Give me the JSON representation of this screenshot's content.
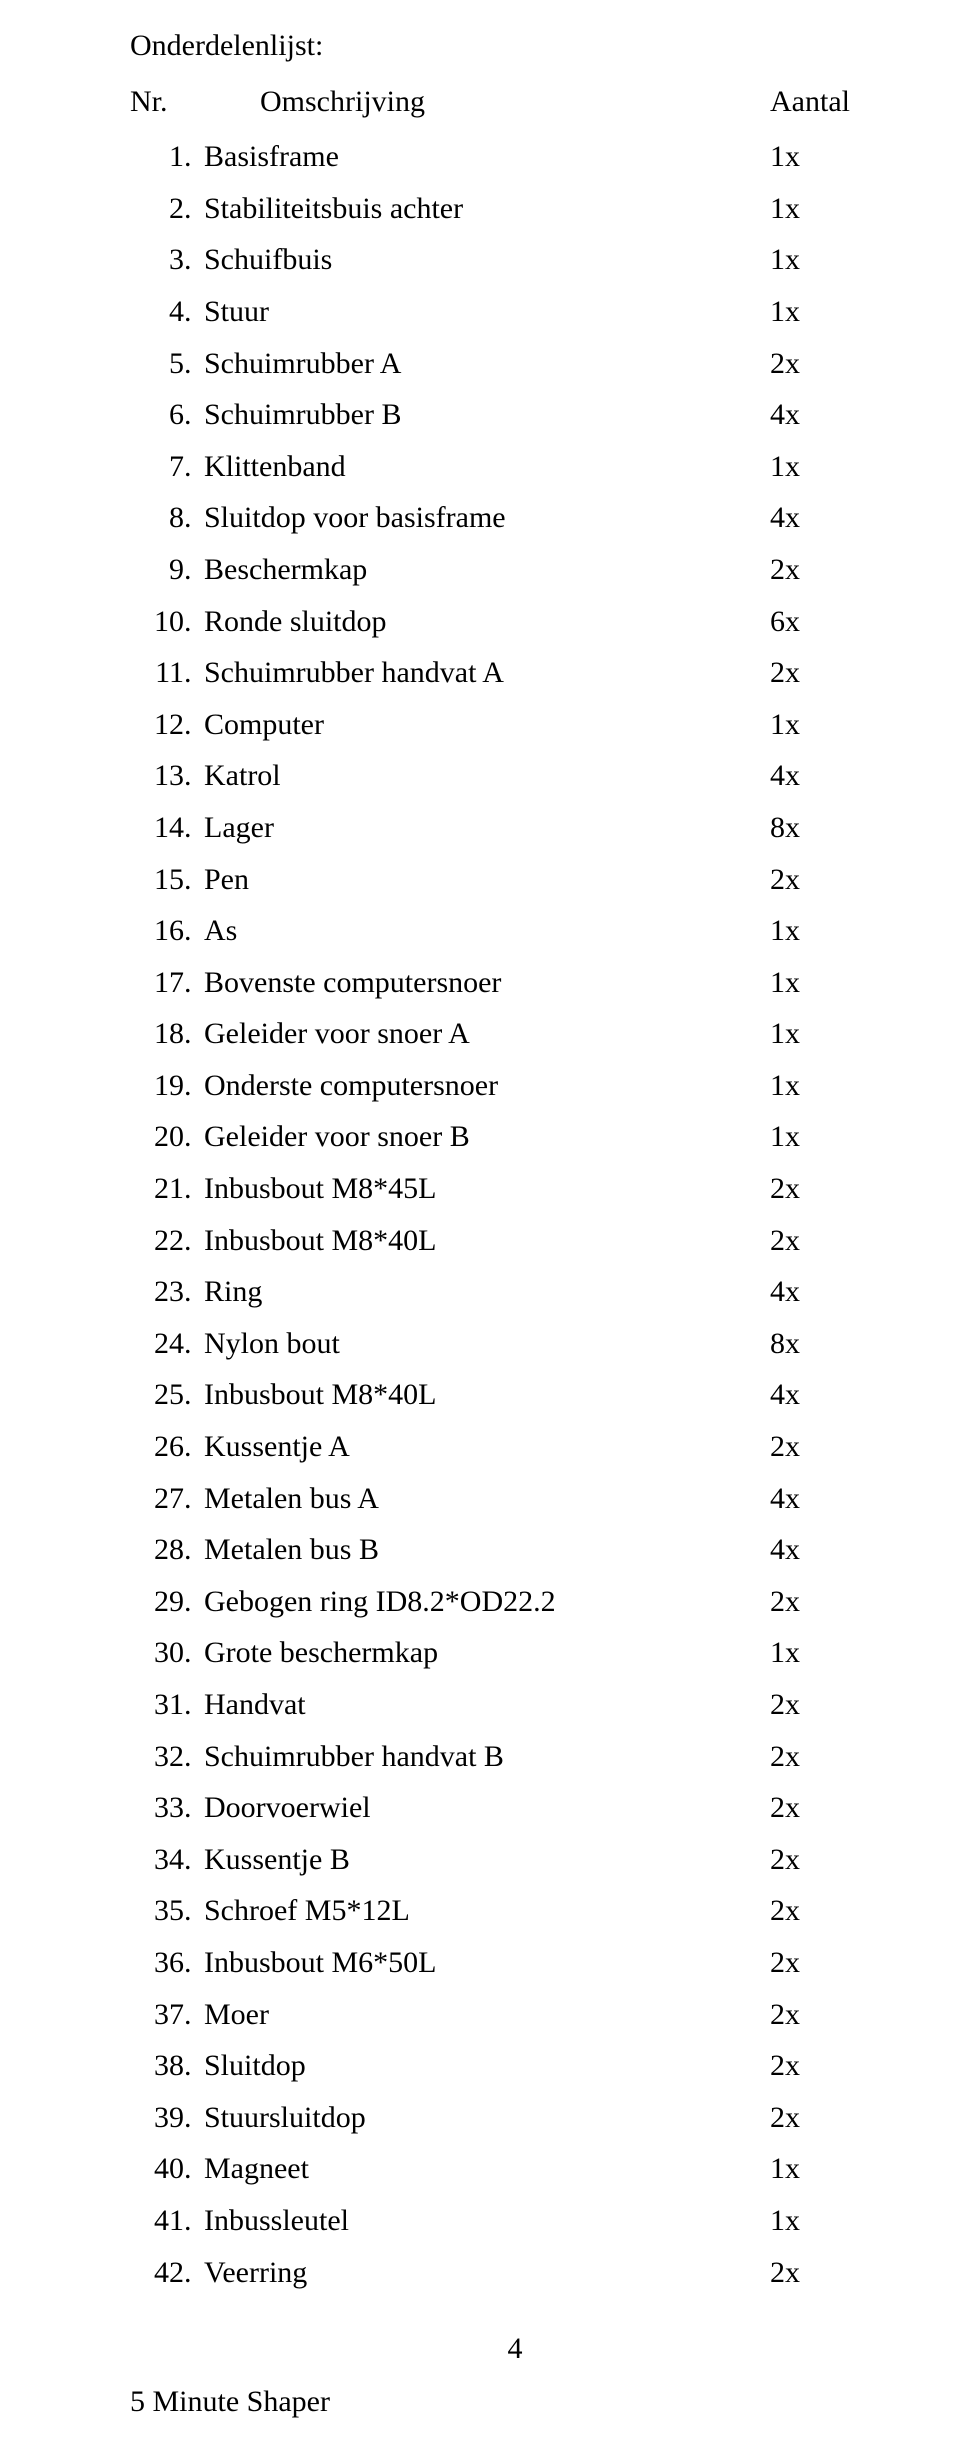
{
  "title": "Onderdelenlijst:",
  "headers": {
    "nr": "Nr.",
    "desc": "Omschrijving",
    "qty": "Aantal"
  },
  "rows": [
    {
      "n": "1",
      "desc": "Basisframe",
      "qty": "1x"
    },
    {
      "n": "2",
      "desc": "Stabiliteitsbuis achter",
      "qty": "1x"
    },
    {
      "n": "3",
      "desc": "Schuifbuis",
      "qty": "1x"
    },
    {
      "n": "4",
      "desc": "Stuur",
      "qty": "1x"
    },
    {
      "n": "5",
      "desc": "Schuimrubber A",
      "qty": "2x"
    },
    {
      "n": "6",
      "desc": "Schuimrubber B",
      "qty": "4x"
    },
    {
      "n": "7",
      "desc": "Klittenband",
      "qty": "1x"
    },
    {
      "n": "8",
      "desc": "Sluitdop voor basisframe",
      "qty": "4x"
    },
    {
      "n": "9",
      "desc": "Beschermkap",
      "qty": "2x"
    },
    {
      "n": "10",
      "desc": "Ronde sluitdop",
      "qty": "6x"
    },
    {
      "n": "11",
      "desc": "Schuimrubber handvat   A",
      "qty": "2x"
    },
    {
      "n": "12",
      "desc": "Computer",
      "qty": "1x"
    },
    {
      "n": "13",
      "desc": "Katrol",
      "qty": "4x"
    },
    {
      "n": "14",
      "desc": "Lager",
      "qty": "8x"
    },
    {
      "n": "15",
      "desc": "Pen",
      "qty": "2x"
    },
    {
      "n": "16",
      "desc": "As",
      "qty": "1x"
    },
    {
      "n": "17",
      "desc": "Bovenste computersnoer",
      "qty": "1x"
    },
    {
      "n": "18",
      "desc": "Geleider voor snoer A",
      "qty": "1x"
    },
    {
      "n": "19",
      "desc": "Onderste computersnoer",
      "qty": "1x"
    },
    {
      "n": "20",
      "desc": "Geleider voor snoer B",
      "qty": "1x"
    },
    {
      "n": "21",
      "desc": "Inbusbout M8*45L",
      "qty": "2x"
    },
    {
      "n": "22",
      "desc": "Inbusbout M8*40L",
      "qty": "2x"
    },
    {
      "n": "23",
      "desc": "Ring",
      "qty": "4x"
    },
    {
      "n": "24",
      "desc": "Nylon bout",
      "qty": "8x"
    },
    {
      "n": "25",
      "desc": "Inbusbout M8*40L",
      "qty": "4x"
    },
    {
      "n": "26",
      "desc": "Kussentje  A",
      "qty": "2x"
    },
    {
      "n": "27",
      "desc": "Metalen bus A",
      "qty": "4x"
    },
    {
      "n": "28",
      "desc": "Metalen bus B",
      "qty": "4x"
    },
    {
      "n": "29",
      "desc": "Gebogen ring ID8.2*OD22.2",
      "qty": "2x"
    },
    {
      "n": "30",
      "desc": "Grote beschermkap",
      "qty": "1x"
    },
    {
      "n": "31",
      "desc": "Handvat",
      "qty": "2x"
    },
    {
      "n": "32",
      "desc": "Schuimrubber handvat B",
      "qty": "2x"
    },
    {
      "n": "33",
      "desc": "Doorvoerwiel",
      "qty": "2x"
    },
    {
      "n": "34",
      "desc": "Kussentje B",
      "qty": "2x"
    },
    {
      "n": "35",
      "desc": "Schroef M5*12L",
      "qty": "2x"
    },
    {
      "n": "36",
      "desc": "Inbusbout M6*50L",
      "qty": "2x"
    },
    {
      "n": "37",
      "desc": "Moer",
      "qty": "2x"
    },
    {
      "n": "38",
      "desc": "Sluitdop",
      "qty": "2x"
    },
    {
      "n": "39",
      "desc": "Stuursluitdop",
      "qty": "2x"
    },
    {
      "n": "40",
      "desc": "Magneet",
      "qty": "1x"
    },
    {
      "n": "41",
      "desc": "Inbussleutel",
      "qty": "1x"
    },
    {
      "n": "42",
      "desc": "Veerring",
      "qty": "2x"
    }
  ],
  "footer": {
    "page": "4",
    "brand": "5 Minute Shaper"
  }
}
